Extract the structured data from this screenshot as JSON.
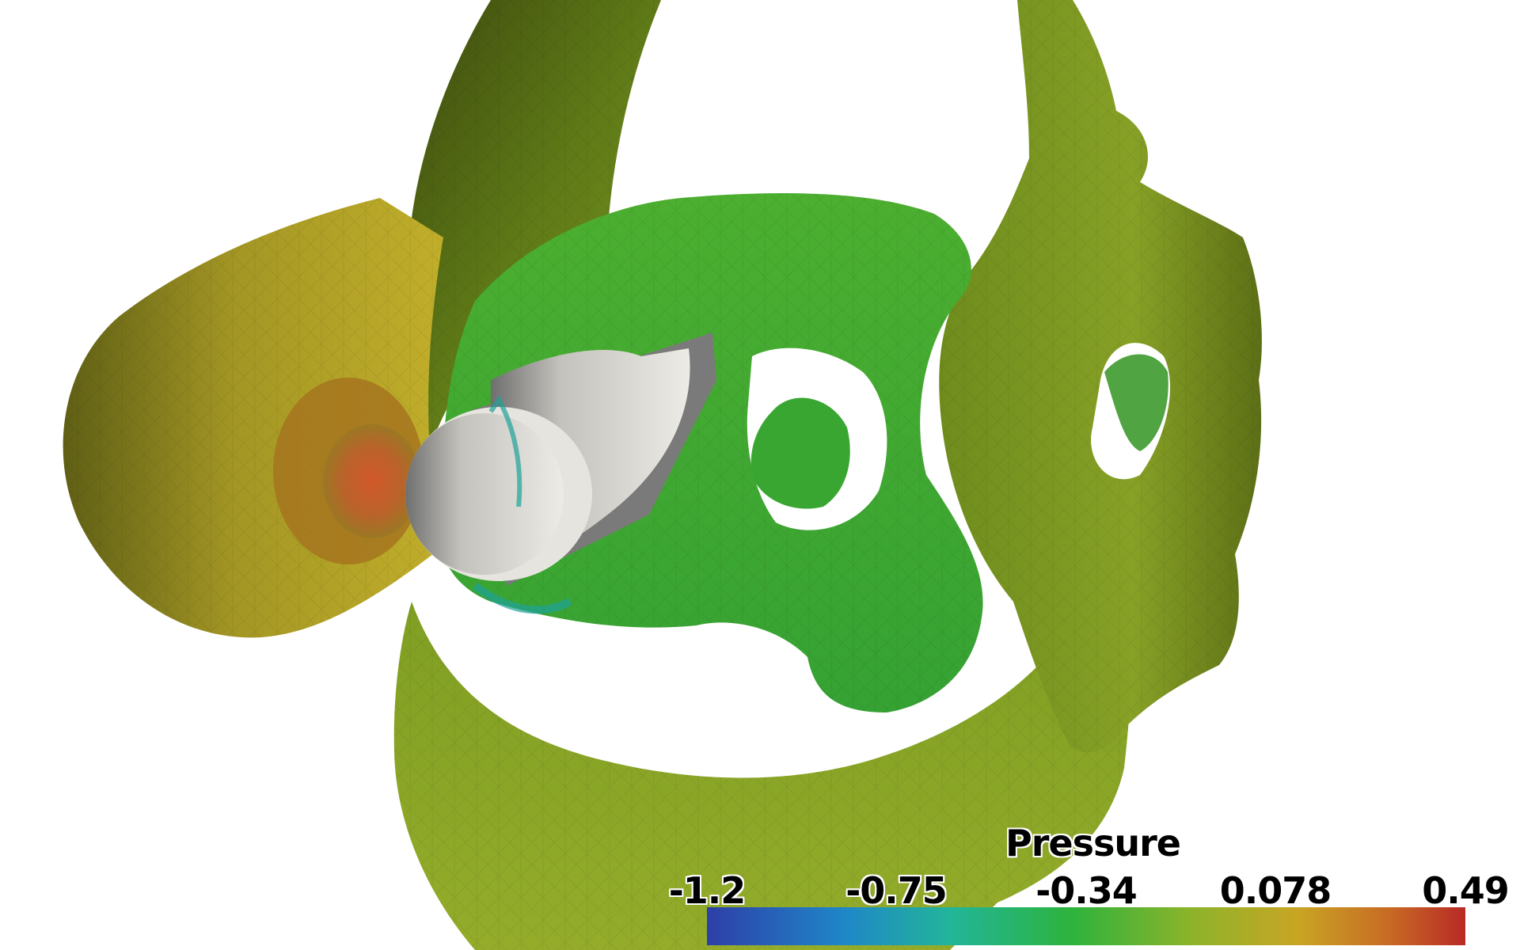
{
  "legend": {
    "title": "Pressure",
    "ticks": [
      "-1.2",
      "-0.75",
      "-0.34",
      "0.078",
      "0.49"
    ],
    "colormap": [
      "#2d3fa8",
      "#1f86c8",
      "#22b59a",
      "#2db33d",
      "#8db32a",
      "#c9a524",
      "#c86a24",
      "#b82a26"
    ]
  },
  "surface_colors": {
    "cylinder": "#dcdad2",
    "inner_green": "#35a83a",
    "yellow_green": "#7ea52a",
    "olive": "#8a9b1f",
    "yellow_tube": "#b8a626",
    "orange_core": "#c7582a"
  }
}
